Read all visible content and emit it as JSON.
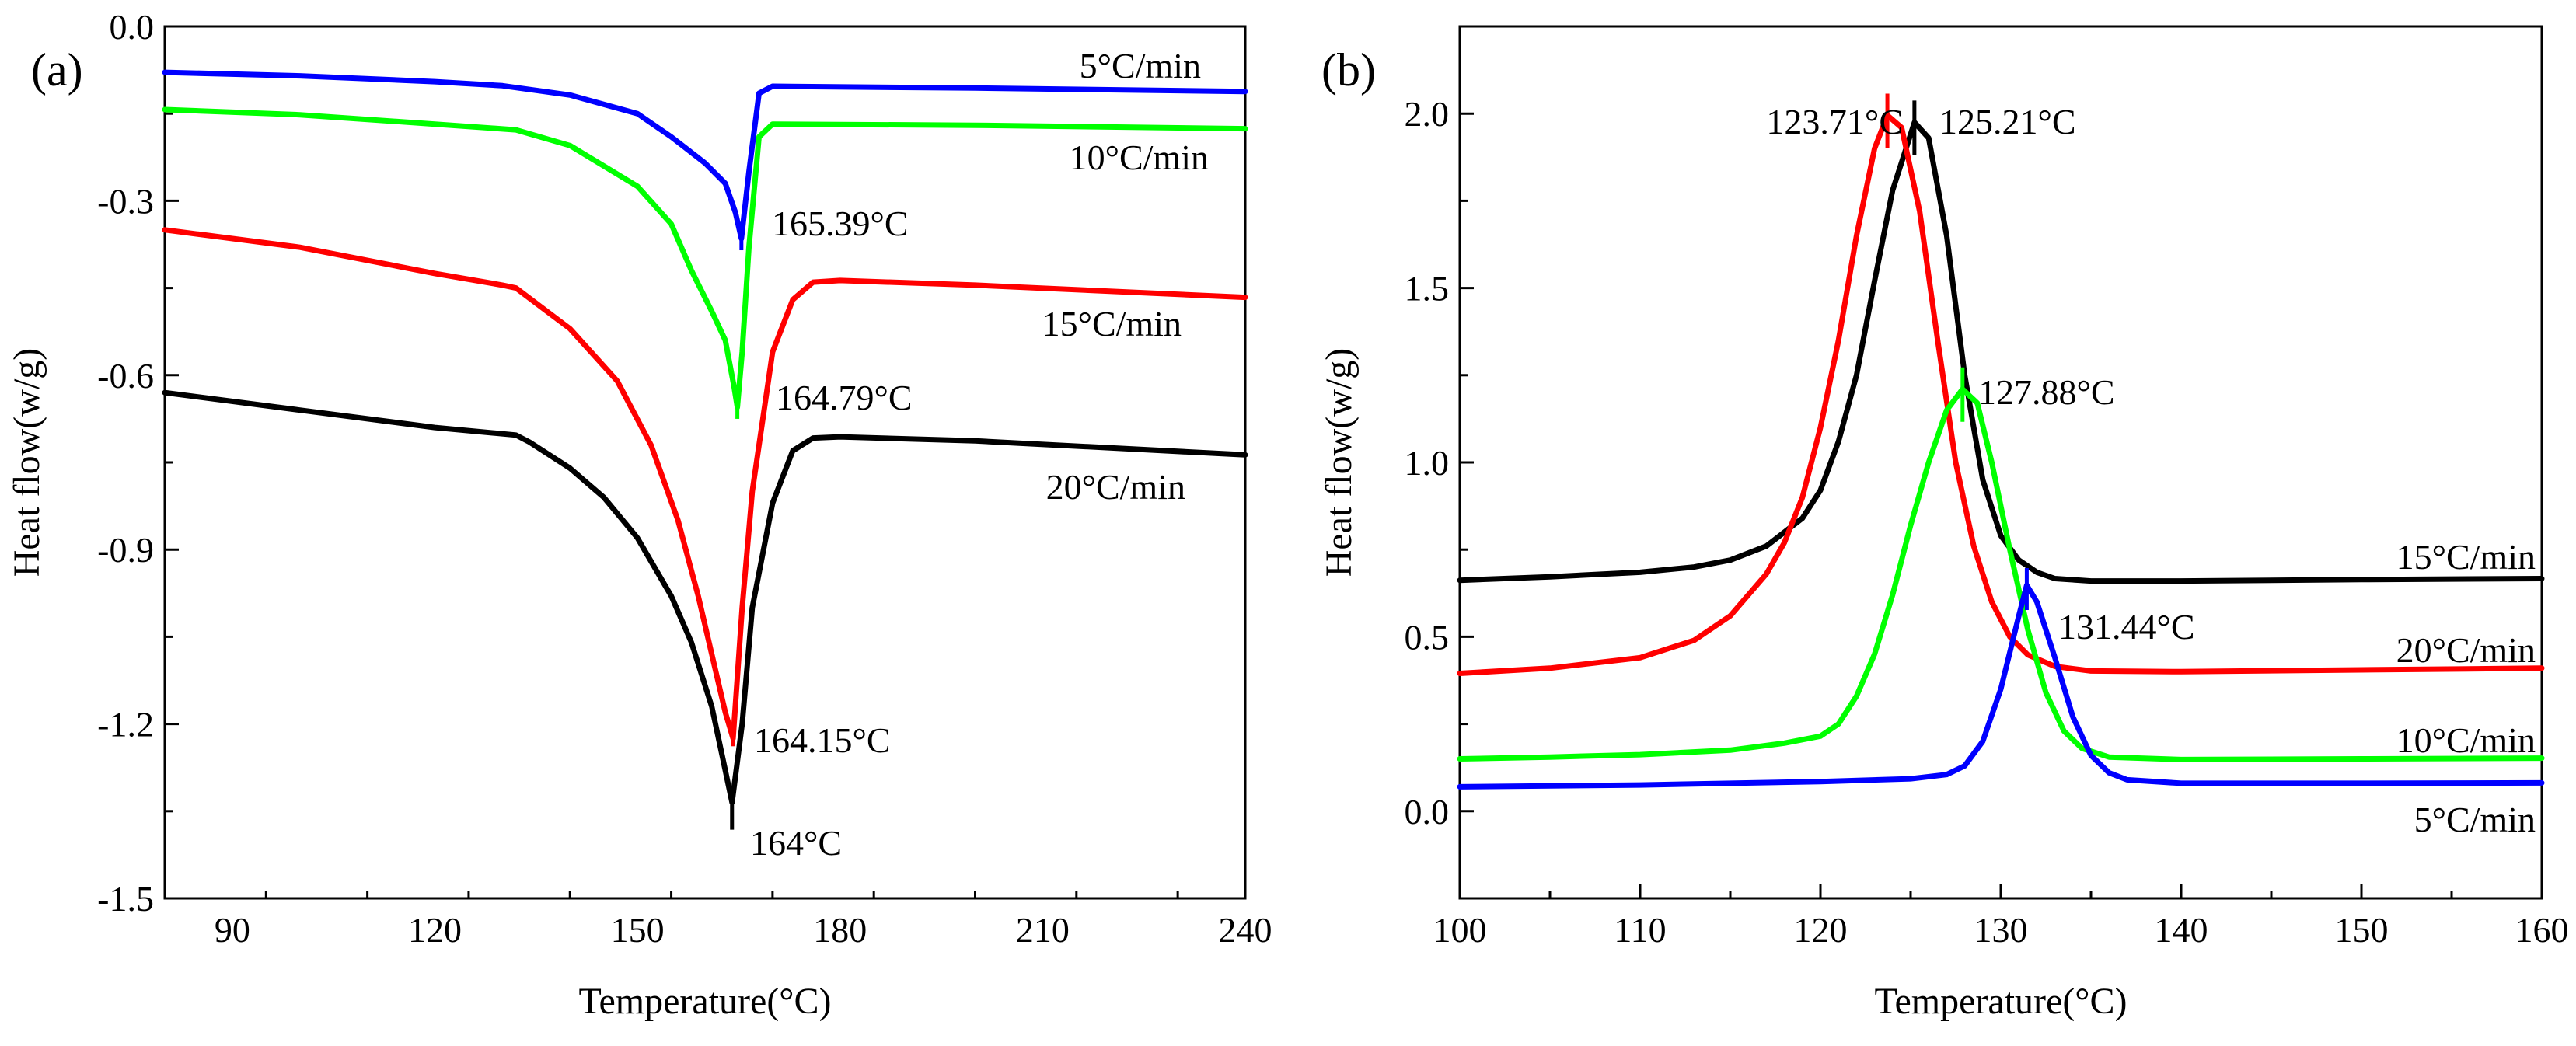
{
  "chart_data": [
    {
      "panel": "(a)",
      "type": "line",
      "xlabel": "Temperature(°C)",
      "ylabel": "Heat flow(w/g)",
      "xlim": [
        80,
        240
      ],
      "ylim": [
        -1.5,
        0.0
      ],
      "xticks": [
        90,
        120,
        150,
        180,
        210,
        240
      ],
      "yticks": [
        0.0,
        -0.3,
        -0.6,
        -0.9,
        -1.2,
        -1.5
      ],
      "ytick_labels": [
        "0.0",
        "-0.3",
        "-0.6",
        "-0.9",
        "-1.2",
        "-1.5"
      ],
      "series": [
        {
          "name": "5°C/min",
          "color": "#0000FF",
          "points": [
            [
              80,
              -0.079
            ],
            [
              100,
              -0.085
            ],
            [
              120,
              -0.095
            ],
            [
              130,
              -0.102
            ],
            [
              140,
              -0.118
            ],
            [
              150,
              -0.15
            ],
            [
              155,
              -0.19
            ],
            [
              160,
              -0.235
            ],
            [
              163,
              -0.27
            ],
            [
              164.5,
              -0.32
            ],
            [
              165.39,
              -0.365
            ],
            [
              166.5,
              -0.25
            ],
            [
              168,
              -0.115
            ],
            [
              170,
              -0.103
            ],
            [
              200,
              -0.106
            ],
            [
              240,
              -0.112
            ]
          ],
          "peak": {
            "x": 165.39,
            "y": -0.365,
            "label": "165.39°C"
          },
          "label_position": "right end, above curve"
        },
        {
          "name": "10°C/min",
          "color": "#00FF00",
          "points": [
            [
              80,
              -0.143
            ],
            [
              100,
              -0.152
            ],
            [
              120,
              -0.168
            ],
            [
              132,
              -0.178
            ],
            [
              140,
              -0.205
            ],
            [
              150,
              -0.275
            ],
            [
              155,
              -0.34
            ],
            [
              158,
              -0.42
            ],
            [
              161,
              -0.49
            ],
            [
              163,
              -0.54
            ],
            [
              164.3,
              -0.62
            ],
            [
              164.79,
              -0.655
            ],
            [
              165.5,
              -0.56
            ],
            [
              166.5,
              -0.38
            ],
            [
              168,
              -0.19
            ],
            [
              170,
              -0.168
            ],
            [
              200,
              -0.17
            ],
            [
              240,
              -0.176
            ]
          ],
          "peak": {
            "x": 164.79,
            "y": -0.655,
            "label": "164.79°C"
          },
          "label_position": "right end, below curve"
        },
        {
          "name": "15°C/min",
          "color": "#FF0000",
          "points": [
            [
              80,
              -0.35
            ],
            [
              100,
              -0.38
            ],
            [
              120,
              -0.425
            ],
            [
              130,
              -0.445
            ],
            [
              132,
              -0.45
            ],
            [
              140,
              -0.52
            ],
            [
              147,
              -0.61
            ],
            [
              152,
              -0.72
            ],
            [
              156,
              -0.85
            ],
            [
              159,
              -0.98
            ],
            [
              161,
              -1.08
            ],
            [
              163,
              -1.18
            ],
            [
              164.15,
              -1.225
            ],
            [
              165.5,
              -1.0
            ],
            [
              167,
              -0.8
            ],
            [
              170,
              -0.56
            ],
            [
              173,
              -0.47
            ],
            [
              176,
              -0.44
            ],
            [
              180,
              -0.437
            ],
            [
              200,
              -0.445
            ],
            [
              240,
              -0.466
            ]
          ],
          "peak": {
            "x": 164.15,
            "y": -1.225,
            "label": "164.15°C"
          },
          "label_position": "right end, below curve"
        },
        {
          "name": "20°C/min",
          "color": "#000000",
          "points": [
            [
              80,
              -0.63
            ],
            [
              100,
              -0.66
            ],
            [
              120,
              -0.69
            ],
            [
              132,
              -0.703
            ],
            [
              134,
              -0.715
            ],
            [
              140,
              -0.76
            ],
            [
              145,
              -0.81
            ],
            [
              150,
              -0.88
            ],
            [
              155,
              -0.98
            ],
            [
              158,
              -1.06
            ],
            [
              161,
              -1.17
            ],
            [
              163,
              -1.28
            ],
            [
              164,
              -1.335
            ],
            [
              165.5,
              -1.2
            ],
            [
              167,
              -1.0
            ],
            [
              170,
              -0.82
            ],
            [
              173,
              -0.73
            ],
            [
              176,
              -0.708
            ],
            [
              180,
              -0.706
            ],
            [
              200,
              -0.713
            ],
            [
              240,
              -0.737
            ]
          ],
          "peak": {
            "x": 164,
            "y": -1.335,
            "label": "164°C"
          },
          "label_position": "right end, below curve"
        }
      ]
    },
    {
      "panel": "(b)",
      "type": "line",
      "xlabel": "Temperature(°C)",
      "ylabel": "Heat flow(w/g)",
      "xlim": [
        100,
        160
      ],
      "ylim": [
        -0.25,
        2.25
      ],
      "xticks": [
        100,
        110,
        120,
        130,
        140,
        150,
        160
      ],
      "yticks": [
        0.0,
        0.5,
        1.0,
        1.5,
        2.0
      ],
      "ytick_labels": [
        "0.0",
        "0.5",
        "1.0",
        "1.5",
        "2.0"
      ],
      "series": [
        {
          "name": "15°C/min",
          "color": "#000000",
          "points": [
            [
              100,
              0.662
            ],
            [
              105,
              0.672
            ],
            [
              110,
              0.685
            ],
            [
              113,
              0.7
            ],
            [
              115,
              0.72
            ],
            [
              117,
              0.76
            ],
            [
              119,
              0.84
            ],
            [
              120,
              0.92
            ],
            [
              121,
              1.06
            ],
            [
              122,
              1.25
            ],
            [
              123,
              1.52
            ],
            [
              124,
              1.78
            ],
            [
              125.21,
              1.975
            ],
            [
              126,
              1.93
            ],
            [
              127,
              1.65
            ],
            [
              128,
              1.25
            ],
            [
              129,
              0.95
            ],
            [
              130,
              0.79
            ],
            [
              131,
              0.72
            ],
            [
              132,
              0.685
            ],
            [
              133,
              0.667
            ],
            [
              135,
              0.66
            ],
            [
              140,
              0.66
            ],
            [
              150,
              0.664
            ],
            [
              160,
              0.667
            ]
          ],
          "peak": {
            "x": 125.21,
            "y": 1.975,
            "label": "125.21°C"
          },
          "label_position": "right end, above curve"
        },
        {
          "name": "20°C/min",
          "color": "#FF0000",
          "points": [
            [
              100,
              0.395
            ],
            [
              105,
              0.41
            ],
            [
              110,
              0.44
            ],
            [
              113,
              0.49
            ],
            [
              115,
              0.56
            ],
            [
              117,
              0.68
            ],
            [
              118,
              0.77
            ],
            [
              119,
              0.9
            ],
            [
              120,
              1.1
            ],
            [
              121,
              1.35
            ],
            [
              122,
              1.65
            ],
            [
              123,
              1.9
            ],
            [
              123.71,
              1.995
            ],
            [
              124.5,
              1.96
            ],
            [
              125.5,
              1.72
            ],
            [
              126.5,
              1.35
            ],
            [
              127.5,
              1.0
            ],
            [
              128.5,
              0.76
            ],
            [
              129.5,
              0.6
            ],
            [
              130.5,
              0.5
            ],
            [
              131.5,
              0.448
            ],
            [
              133,
              0.415
            ],
            [
              135,
              0.402
            ],
            [
              140,
              0.4
            ],
            [
              150,
              0.405
            ],
            [
              160,
              0.41
            ]
          ],
          "peak": {
            "x": 123.71,
            "y": 1.995,
            "label": "123.71°C"
          },
          "label_position": "right end, above curve"
        },
        {
          "name": "10°C/min",
          "color": "#00FF00",
          "points": [
            [
              100,
              0.15
            ],
            [
              105,
              0.155
            ],
            [
              110,
              0.162
            ],
            [
              115,
              0.175
            ],
            [
              118,
              0.195
            ],
            [
              120,
              0.215
            ],
            [
              121,
              0.25
            ],
            [
              122,
              0.33
            ],
            [
              123,
              0.45
            ],
            [
              124,
              0.62
            ],
            [
              125,
              0.82
            ],
            [
              126,
              1.0
            ],
            [
              127,
              1.15
            ],
            [
              127.88,
              1.21
            ],
            [
              128.7,
              1.17
            ],
            [
              129.5,
              1.0
            ],
            [
              130.5,
              0.75
            ],
            [
              131.5,
              0.52
            ],
            [
              132.5,
              0.34
            ],
            [
              133.5,
              0.23
            ],
            [
              134.5,
              0.18
            ],
            [
              136,
              0.155
            ],
            [
              140,
              0.148
            ],
            [
              150,
              0.15
            ],
            [
              160,
              0.152
            ]
          ],
          "peak": {
            "x": 127.88,
            "y": 1.21,
            "label": "127.88°C"
          },
          "label_position": "right end, above curve"
        },
        {
          "name": "5°C/min",
          "color": "#0000FF",
          "points": [
            [
              100,
              0.07
            ],
            [
              110,
              0.075
            ],
            [
              120,
              0.085
            ],
            [
              125,
              0.093
            ],
            [
              127,
              0.105
            ],
            [
              128,
              0.13
            ],
            [
              129,
              0.2
            ],
            [
              130,
              0.35
            ],
            [
              131,
              0.56
            ],
            [
              131.44,
              0.648
            ],
            [
              132,
              0.6
            ],
            [
              133,
              0.44
            ],
            [
              134,
              0.27
            ],
            [
              135,
              0.16
            ],
            [
              136,
              0.11
            ],
            [
              137,
              0.09
            ],
            [
              140,
              0.08
            ],
            [
              150,
              0.08
            ],
            [
              160,
              0.081
            ]
          ],
          "peak": {
            "x": 131.44,
            "y": 0.648,
            "label": "131.44°C"
          },
          "label_position": "right end, below curve"
        }
      ]
    }
  ]
}
